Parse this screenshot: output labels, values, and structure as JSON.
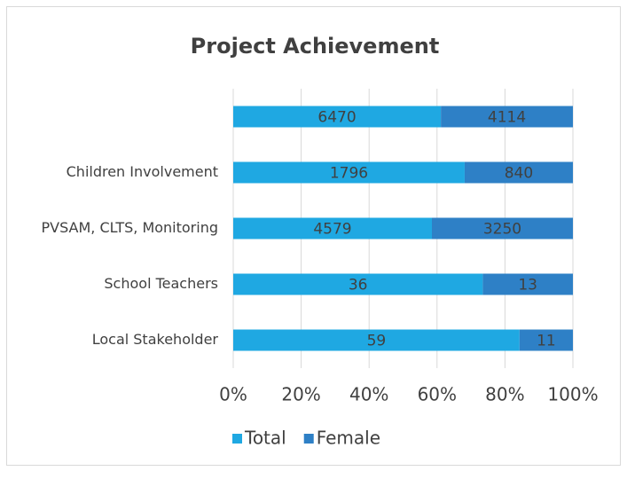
{
  "chart_data": {
    "type": "bar",
    "orientation": "horizontal",
    "stacking": "percent",
    "title": "Project Achievement",
    "categories": [
      null,
      "Children Involvement",
      "PVSAM, CLTS, Monitoring",
      "School Teachers",
      "Local Stakeholder"
    ],
    "series": [
      {
        "name": "Total",
        "color": "#1fa8e2",
        "values": [
          6470,
          1796,
          4579,
          36,
          59
        ]
      },
      {
        "name": "Female",
        "color": "#2e80c6",
        "values": [
          4114,
          840,
          3250,
          13,
          11
        ]
      }
    ],
    "xlim": [
      0,
      100
    ],
    "xticks": [
      {
        "value": 0,
        "label": "0%"
      },
      {
        "value": 20,
        "label": "20%"
      },
      {
        "value": 40,
        "label": "40%"
      },
      {
        "value": 60,
        "label": "60%"
      },
      {
        "value": 80,
        "label": "80%"
      },
      {
        "value": 100,
        "label": "100%"
      }
    ],
    "grid": true,
    "legend": "bottom"
  }
}
